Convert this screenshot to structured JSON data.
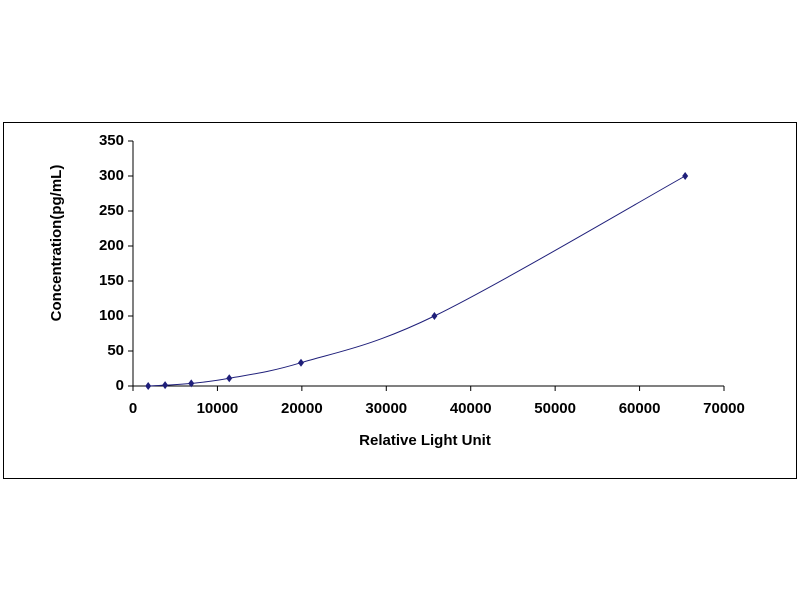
{
  "chart_data": {
    "type": "scatter",
    "x_label": "Relative Light Unit",
    "y_label": "Concentration(pg/mL)",
    "series": [
      {
        "color": "#1f1f7a",
        "x": [
          1800,
          3800,
          6900,
          11400,
          19900,
          35700,
          65400
        ],
        "values": [
          0,
          1.23,
          3.7,
          11.1,
          33.3,
          100,
          300
        ]
      }
    ],
    "smooth_line": true,
    "xlim": [
      0,
      70000
    ],
    "xticks": [
      0,
      10000,
      20000,
      30000,
      40000,
      50000,
      60000,
      70000
    ],
    "ylim": [
      0,
      350
    ],
    "yticks": [
      0,
      50,
      100,
      150,
      200,
      250,
      300,
      350
    ],
    "grid": false
  }
}
